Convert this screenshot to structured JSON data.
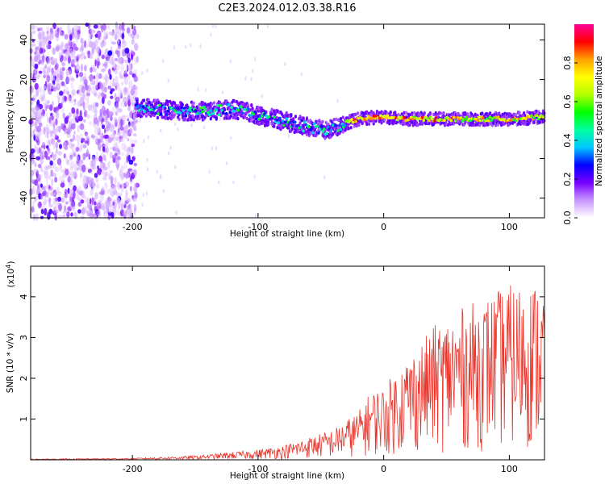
{
  "title": "C2E3.2024.012.03.38.R16",
  "chart_data": [
    {
      "type": "heatmap",
      "xlabel": "Height of straight line (km)",
      "ylabel": "Frequency (Hz)",
      "xlim": [
        -281,
        128
      ],
      "ylim": [
        -50,
        48
      ],
      "xticks": [
        -200,
        -100,
        0,
        100
      ],
      "yticks": [
        40,
        20,
        0,
        -20,
        -40
      ],
      "colorbar": {
        "label": "Normalized spectral amplitude",
        "range": [
          0,
          1
        ],
        "ticks": [
          "0.0",
          "0.2",
          "0.4",
          "0.6",
          "0.8"
        ],
        "colors": [
          "#ffffff",
          "#c896ff",
          "#7800ff",
          "#0000ff",
          "#00c8ff",
          "#00ffa0",
          "#00ff00",
          "#b4ff00",
          "#ffff00",
          "#ffa000",
          "#ff0000",
          "#ff0096"
        ]
      },
      "ridge": {
        "x": [
          -197,
          -180,
          -160,
          -140,
          -120,
          -100,
          -80,
          -60,
          -45,
          -35,
          -20,
          0,
          20,
          40,
          60,
          80,
          100,
          128
        ],
        "y": [
          6,
          5,
          4,
          4,
          5,
          2,
          -1,
          -4,
          -6,
          -3,
          0,
          1,
          0,
          0,
          0,
          0,
          0,
          1
        ]
      },
      "grid": false
    },
    {
      "type": "line",
      "xlabel": "Height of straight line (km)",
      "ylabel": "SNR (10 * v/v)",
      "multiplier_label": "(x10",
      "multiplier_exp": "4",
      "multiplier_close": ")",
      "xlim": [
        -281,
        128
      ],
      "ylim": [
        0,
        4.75
      ],
      "xticks": [
        -200,
        -100,
        0,
        100
      ],
      "yticks": [
        1,
        2,
        3,
        4
      ],
      "color": "#e8342b",
      "envelope": {
        "x": [
          -281,
          -200,
          -150,
          -100,
          -80,
          -60,
          -40,
          -20,
          -10,
          0,
          10,
          20,
          30,
          40,
          50,
          60,
          80,
          100,
          128
        ],
        "y": [
          0.02,
          0.04,
          0.1,
          0.25,
          0.35,
          0.55,
          0.75,
          1.2,
          1.7,
          1.8,
          2.2,
          2.6,
          2.9,
          3.3,
          3.5,
          3.7,
          4.0,
          4.3,
          4.4
        ]
      },
      "grid": false
    }
  ]
}
